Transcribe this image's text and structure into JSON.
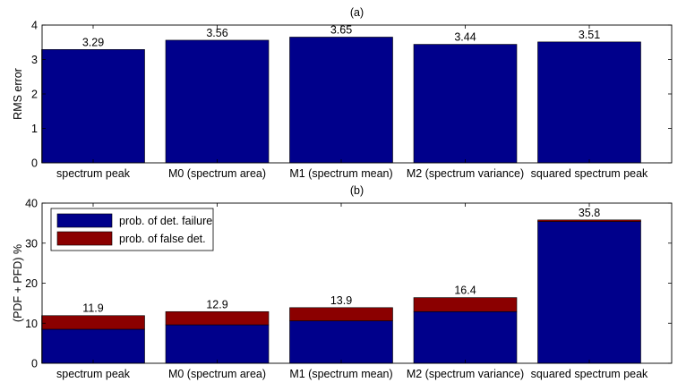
{
  "chart_data": [
    {
      "type": "bar",
      "panel_label": "(a)",
      "ylabel": "RMS error",
      "ylim": [
        0,
        4
      ],
      "yticks": [
        0,
        1,
        2,
        3,
        4
      ],
      "categories": [
        "spectrum peak",
        "M0 (spectrum area)",
        "M1 (spectrum mean)",
        "M2 (spectrum variance)",
        "squared spectrum peak"
      ],
      "values": [
        3.29,
        3.56,
        3.65,
        3.44,
        3.51
      ],
      "value_labels": [
        "3.29",
        "3.56",
        "3.65",
        "3.44",
        "3.51"
      ],
      "bar_color": "#00008B"
    },
    {
      "type": "bar",
      "stacked": true,
      "panel_label": "(b)",
      "ylabel": "(PDF + PFD) %",
      "ylim": [
        0,
        40
      ],
      "yticks": [
        0,
        10,
        20,
        30,
        40
      ],
      "categories": [
        "spectrum peak",
        "M0 (spectrum area)",
        "M1 (spectrum mean)",
        "M2 (spectrum variance)",
        "squared spectrum peak"
      ],
      "series": [
        {
          "name": "prob. of det. failure",
          "color": "#00008B",
          "values": [
            8.5,
            9.6,
            10.6,
            12.9,
            35.4
          ]
        },
        {
          "name": "prob. of false det.",
          "color": "#8B0000",
          "values": [
            3.4,
            3.3,
            3.3,
            3.5,
            0.4
          ]
        }
      ],
      "totals": [
        11.9,
        12.9,
        13.9,
        16.4,
        35.8
      ],
      "total_labels": [
        "11.9",
        "12.9",
        "13.9",
        "16.4",
        "35.8"
      ],
      "legend_position": "top-left"
    }
  ]
}
